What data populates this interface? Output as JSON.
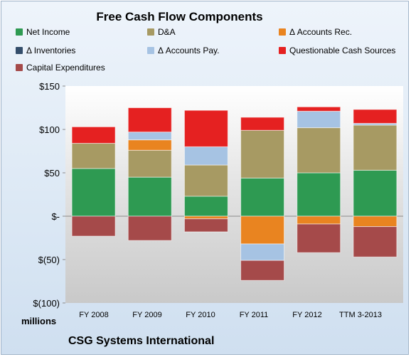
{
  "chart_data": {
    "type": "bar",
    "stacked": true,
    "title": "Free Cash Flow Components",
    "ylabel": "",
    "units_label": "millions",
    "source_label": "CSG Systems International",
    "ylim": [
      -100,
      150
    ],
    "yticks": [
      150,
      100,
      50,
      0,
      -50,
      -100
    ],
    "ytick_labels": [
      "$150",
      "$100",
      "$50",
      "$-",
      "$(50)",
      "$(100)"
    ],
    "grid": false,
    "categories": [
      "FY 2008",
      "FY 2009",
      "FY 2010",
      "FY 2011",
      "FY 2012",
      "TTM 3-2013"
    ],
    "series": [
      {
        "name": "Net Income",
        "color": "#2e9a52",
        "values": [
          55,
          45,
          23,
          44,
          50,
          53
        ]
      },
      {
        "name": "D&A",
        "color": "#a79a63",
        "values": [
          29,
          31,
          36,
          55,
          52,
          52
        ]
      },
      {
        "name": "Δ Accounts Rec.",
        "color": "#e98420",
        "values": [
          0,
          12,
          -3,
          -32,
          -9,
          -12
        ]
      },
      {
        "name": "Δ Inventories",
        "color": "#344e6b",
        "values": [
          0,
          0,
          0,
          0,
          0,
          0
        ]
      },
      {
        "name": "Δ Accounts Pay.",
        "color": "#a6c3e3",
        "values": [
          0,
          9,
          21,
          -19,
          19,
          2
        ]
      },
      {
        "name": "Questionable Cash Sources",
        "color": "#e52121",
        "values": [
          19,
          28,
          42,
          15,
          5,
          16
        ]
      },
      {
        "name": "Capital Expenditures",
        "color": "#a54a4a",
        "values": [
          -23,
          -28,
          -15,
          -23,
          -33,
          -35
        ]
      }
    ]
  }
}
